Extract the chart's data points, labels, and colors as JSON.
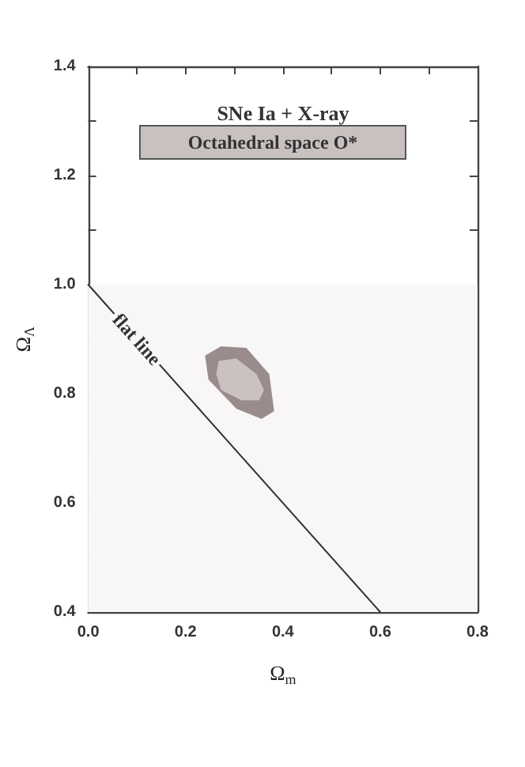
{
  "chart_data": {
    "type": "area",
    "title": "SNe Ia + X-ray",
    "subtitle": "Octahedral space O*",
    "xlabel": "Ω$_{m}$",
    "ylabel": "Ω$_{Λ}$",
    "xlim": [
      0,
      0.8
    ],
    "ylim": [
      0.4,
      1.4
    ],
    "xticks": [
      {
        "value": 0,
        "label": "0.0"
      },
      {
        "value": 0.1,
        "label": null
      },
      0.2,
      {
        "value": 0.3,
        "label": null
      },
      0.4,
      {
        "value": 0.5,
        "label": null
      },
      0.6,
      {
        "value": 0.7,
        "label": null
      },
      0.8
    ],
    "yticks": [
      0.4,
      {
        "value": 0.5,
        "label": null
      },
      0.6,
      {
        "value": 0.7,
        "label": null
      },
      0.8,
      {
        "value": 0.9,
        "label": null
      },
      {
        "value": 1.0,
        "label": "1.0"
      },
      {
        "value": 1.1,
        "label": null
      },
      1.2,
      {
        "value": 1.3,
        "label": null
      },
      1.4
    ],
    "series": [
      {
        "color": "#9a8c8c",
        "x": [
          0.24,
          0.273,
          0.325,
          0.372,
          0.382,
          0.356,
          0.304,
          0.247
        ],
        "values": [
          0.87,
          0.887,
          0.884,
          0.836,
          0.768,
          0.754,
          0.773,
          0.826
        ]
      },
      {
        "color": "#cbc1c1",
        "x": [
          0.268,
          0.304,
          0.346,
          0.361,
          0.351,
          0.315,
          0.273,
          0.263
        ],
        "values": [
          0.86,
          0.865,
          0.836,
          0.807,
          0.788,
          0.788,
          0.807,
          0.836
        ]
      },
      {
        "type": "line",
        "color": "#333333",
        "x": [
          0,
          0.6
        ],
        "values": [
          1.0,
          0.4
        ]
      }
    ],
    "bands": [
      {
        "axis": "y",
        "from": 0.4,
        "to": 1.0,
        "color": "#f8f6f6"
      }
    ],
    "annotations": [
      {
        "text": "flat line",
        "x": 0.1,
        "y": 0.9
      }
    ],
    "grid": false,
    "marker": "none",
    "line_style": "solid"
  }
}
